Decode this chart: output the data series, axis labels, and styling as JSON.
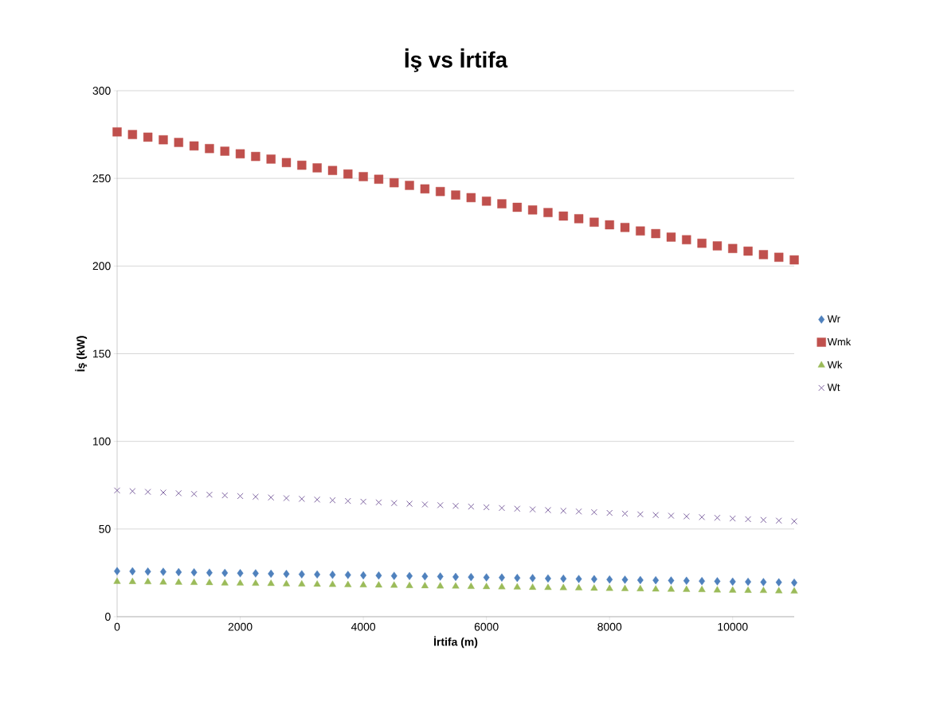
{
  "chart_data": {
    "type": "scatter",
    "title": "İş vs İrtifa",
    "xlabel": "İrtifa (m)",
    "ylabel": "İş (kW)",
    "x": [
      0,
      250,
      500,
      750,
      1000,
      1250,
      1500,
      1750,
      2000,
      2250,
      2500,
      2750,
      3000,
      3250,
      3500,
      3750,
      4000,
      4250,
      4500,
      4750,
      5000,
      5250,
      5500,
      5750,
      6000,
      6250,
      6500,
      6750,
      7000,
      7250,
      7500,
      7750,
      8000,
      8250,
      8500,
      8750,
      9000,
      9250,
      9500,
      9750,
      10000,
      10250,
      10500,
      10750,
      11000
    ],
    "series": [
      {
        "name": "Wr",
        "color": "#4f81bd",
        "marker": "diamond",
        "values": [
          26.0,
          25.9,
          25.7,
          25.6,
          25.4,
          25.3,
          25.1,
          25.0,
          24.8,
          24.7,
          24.5,
          24.4,
          24.2,
          24.1,
          23.9,
          23.8,
          23.6,
          23.5,
          23.3,
          23.2,
          23.0,
          22.9,
          22.7,
          22.6,
          22.4,
          22.3,
          22.1,
          22.0,
          21.8,
          21.7,
          21.5,
          21.4,
          21.2,
          21.1,
          20.9,
          20.8,
          20.6,
          20.5,
          20.3,
          20.2,
          20.0,
          19.9,
          19.7,
          19.6,
          19.4
        ]
      },
      {
        "name": "Wmk",
        "color": "#c0504d",
        "marker": "square",
        "values": [
          276.5,
          275,
          273.5,
          272,
          270.5,
          268.5,
          267,
          265.5,
          264,
          262.5,
          261,
          259,
          257.5,
          256,
          254.5,
          252.5,
          251,
          249.5,
          247.5,
          246,
          244,
          242.5,
          240.5,
          239,
          237,
          235.5,
          233.5,
          232,
          230.5,
          228.5,
          227,
          225,
          223.5,
          222,
          220,
          218.5,
          216.5,
          215,
          213,
          211.5,
          210,
          208.5,
          206.5,
          205,
          203.5
        ]
      },
      {
        "name": "Wk",
        "color": "#9bbb59",
        "marker": "triangle",
        "values": [
          20.0,
          19.9,
          19.8,
          19.6,
          19.5,
          19.4,
          19.3,
          19.1,
          19.0,
          18.9,
          18.8,
          18.6,
          18.5,
          18.4,
          18.3,
          18.1,
          18.0,
          17.9,
          17.8,
          17.6,
          17.5,
          17.4,
          17.3,
          17.1,
          17.0,
          16.9,
          16.8,
          16.6,
          16.5,
          16.4,
          16.3,
          16.1,
          16.0,
          15.9,
          15.8,
          15.6,
          15.5,
          15.4,
          15.3,
          15.1,
          15.0,
          14.9,
          14.8,
          14.6,
          14.5
        ]
      },
      {
        "name": "Wt",
        "color": "#8064a2",
        "marker": "cross",
        "values": [
          72.0,
          71.6,
          71.2,
          70.8,
          70.4,
          70.0,
          69.6,
          69.2,
          68.8,
          68.4,
          68.0,
          67.6,
          67.2,
          66.8,
          66.4,
          66.0,
          65.6,
          65.2,
          64.8,
          64.4,
          64.0,
          63.6,
          63.2,
          62.8,
          62.4,
          62.0,
          61.6,
          61.2,
          60.8,
          60.4,
          60.0,
          59.6,
          59.2,
          58.8,
          58.4,
          58.0,
          57.6,
          57.2,
          56.8,
          56.4,
          56.0,
          55.6,
          55.2,
          54.8,
          54.4
        ]
      }
    ],
    "xlim": [
      0,
      11000
    ],
    "xticks": [
      0,
      2000,
      4000,
      6000,
      8000,
      10000
    ],
    "ylim": [
      0,
      300
    ],
    "yticks": [
      0,
      50,
      100,
      150,
      200,
      250,
      300
    ],
    "grid": "y",
    "legend": "right"
  }
}
